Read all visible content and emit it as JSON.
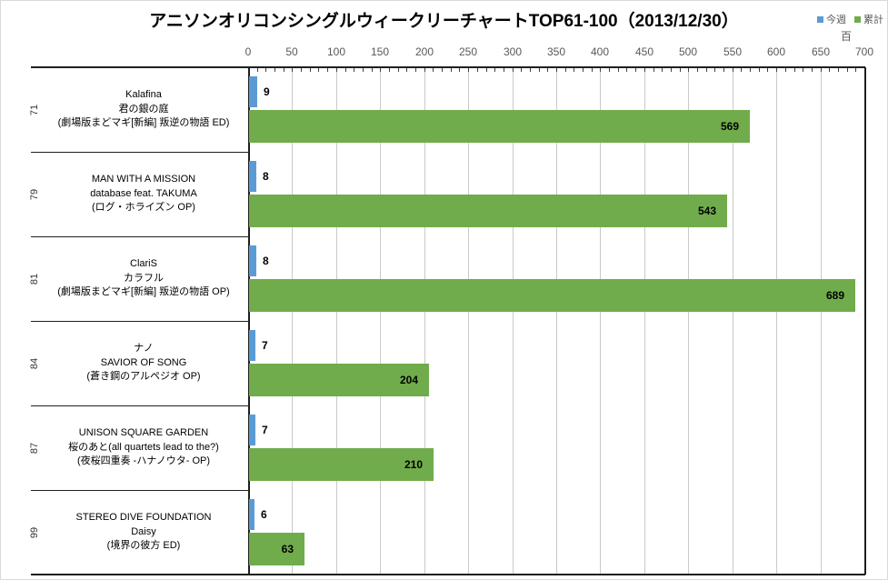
{
  "title": "アニソンオリコンシングルウィークリーチャートTOP61-100（2013/12/30）",
  "legend": {
    "items": [
      {
        "label": "今週",
        "color": "#5B9BD5"
      },
      {
        "label": "累計",
        "color": "#70AC4B"
      }
    ]
  },
  "axis": {
    "unit_label": "百",
    "tick_labels": [
      "0",
      "50",
      "100",
      "150",
      "200",
      "250",
      "300",
      "350",
      "400",
      "450",
      "500",
      "550",
      "600",
      "650",
      "700"
    ],
    "major_tick_step": 50,
    "minor_tick_step": 10,
    "max": 700
  },
  "chart_data": {
    "type": "bar",
    "orientation": "horizontal",
    "title": "アニソンオリコンシングルウィークリーチャートTOP61-100（2013/12/30）",
    "xlim": [
      0,
      700
    ],
    "unit": "百",
    "grid": true,
    "legend_position": "top-right",
    "categories": [
      {
        "rank": "71",
        "lines": [
          "Kalafina",
          "君の銀の庭",
          "(劇場版まどマギ[新編] 叛逆の物語 ED)"
        ]
      },
      {
        "rank": "79",
        "lines": [
          "MAN WITH A MISSION",
          "database feat. TAKUMA",
          "(ログ・ホライズン OP)"
        ]
      },
      {
        "rank": "81",
        "lines": [
          "ClariS",
          "カラフル",
          "(劇場版まどマギ[新編] 叛逆の物語 OP)"
        ]
      },
      {
        "rank": "84",
        "lines": [
          "ナノ",
          "SAVIOR OF SONG",
          "(蒼き鋼のアルペジオ OP)"
        ]
      },
      {
        "rank": "87",
        "lines": [
          "UNISON SQUARE GARDEN",
          "桜のあと(all quartets lead to the?)",
          "(夜桜四重奏 -ハナノウタ- OP)"
        ]
      },
      {
        "rank": "99",
        "lines": [
          "STEREO DIVE FOUNDATION",
          "Daisy",
          "(境界の彼方 ED)"
        ]
      }
    ],
    "series": [
      {
        "name": "今週",
        "color": "#5B9BD5",
        "values": [
          9,
          8,
          8,
          7,
          7,
          6
        ]
      },
      {
        "name": "累計",
        "color": "#70AC4B",
        "values": [
          569,
          543,
          689,
          204,
          210,
          63
        ]
      }
    ]
  }
}
